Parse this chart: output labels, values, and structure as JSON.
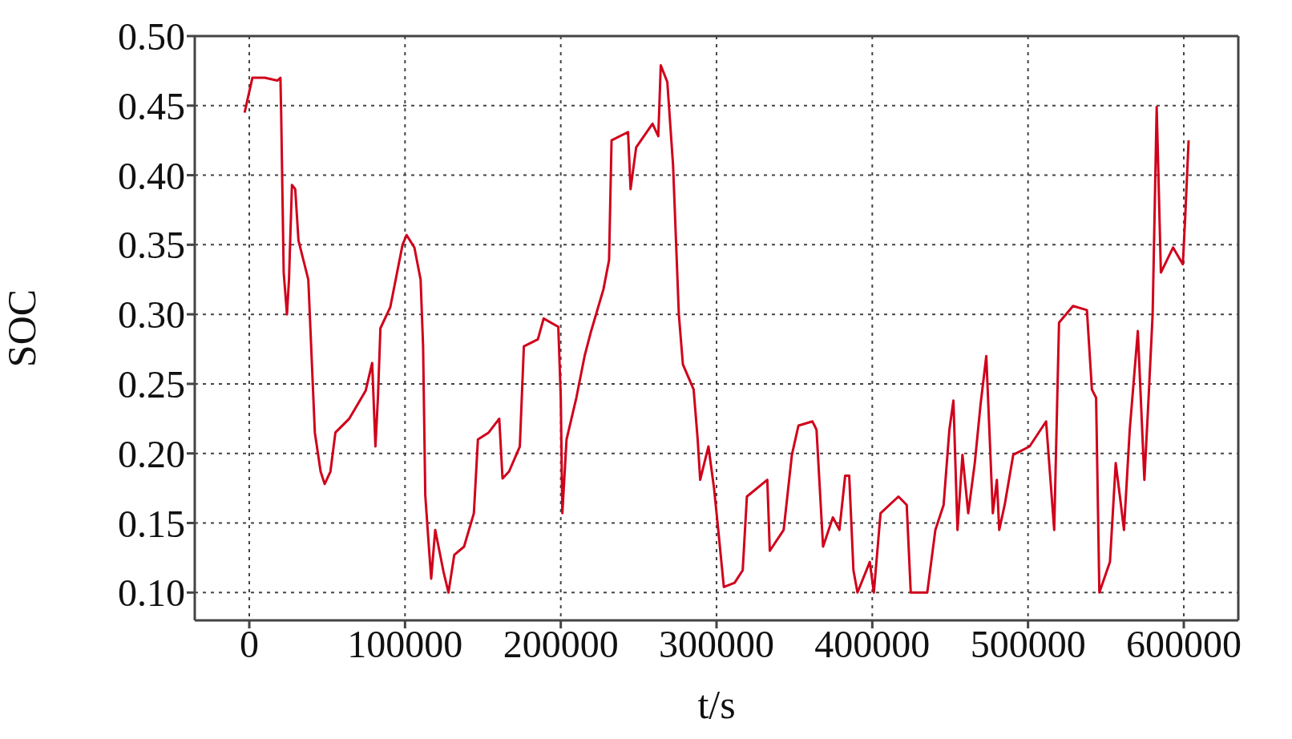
{
  "chart_data": {
    "type": "line",
    "xlabel": "t/s",
    "ylabel": "SOC",
    "x": [
      -3000,
      0,
      2000,
      10000,
      18000,
      20000,
      20500,
      22100,
      24200,
      25500,
      27400,
      29500,
      31600,
      37900,
      40000,
      42100,
      45800,
      48400,
      52100,
      55300,
      64200,
      74700,
      78900,
      81000,
      82600,
      84200,
      90500,
      98400,
      101000,
      106000,
      110000,
      111600,
      113000,
      115300,
      116800,
      119400,
      124700,
      127900,
      131600,
      137900,
      144200,
      146800,
      153700,
      160500,
      162600,
      166800,
      173700,
      176300,
      185300,
      189000,
      198400,
      200000,
      201000,
      203700,
      210000,
      215300,
      219500,
      227400,
      231000,
      232600,
      243200,
      244800,
      248400,
      258900,
      262600,
      264200,
      268400,
      272100,
      275800,
      278400,
      285300,
      287900,
      289500,
      294800,
      298400,
      301100,
      304700,
      311600,
      316800,
      319500,
      332600,
      334200,
      343100,
      348400,
      352600,
      361600,
      364200,
      368400,
      374700,
      378900,
      382600,
      385200,
      387900,
      390500,
      398400,
      401000,
      405300,
      416800,
      422100,
      424700,
      435300,
      440500,
      445800,
      449500,
      452100,
      454700,
      457900,
      461600,
      465800,
      469500,
      473200,
      477400,
      480000,
      481500,
      485000,
      490500,
      501000,
      511600,
      516800,
      519900,
      528900,
      537800,
      541000,
      543700,
      545800,
      552600,
      556300,
      559000,
      561600,
      565300,
      570500,
      574700,
      577400,
      580000,
      582600,
      585300,
      593100,
      599400,
      601000,
      603100
    ],
    "series": [
      {
        "color": "#d0021b",
        "values": [
          0.445,
          0.46,
          0.47,
          0.47,
          0.468,
          0.47,
          0.443,
          0.33,
          0.3,
          0.325,
          0.393,
          0.39,
          0.353,
          0.325,
          0.27,
          0.215,
          0.187,
          0.178,
          0.187,
          0.215,
          0.225,
          0.245,
          0.265,
          0.205,
          0.24,
          0.29,
          0.305,
          0.35,
          0.357,
          0.348,
          0.325,
          0.277,
          0.17,
          0.133,
          0.11,
          0.145,
          0.115,
          0.1,
          0.127,
          0.133,
          0.157,
          0.21,
          0.215,
          0.225,
          0.182,
          0.187,
          0.205,
          0.277,
          0.282,
          0.297,
          0.291,
          0.24,
          0.157,
          0.21,
          0.24,
          0.27,
          0.288,
          0.318,
          0.339,
          0.425,
          0.431,
          0.39,
          0.42,
          0.437,
          0.428,
          0.479,
          0.467,
          0.407,
          0.3,
          0.264,
          0.246,
          0.21,
          0.181,
          0.205,
          0.175,
          0.145,
          0.104,
          0.107,
          0.116,
          0.169,
          0.181,
          0.13,
          0.145,
          0.199,
          0.22,
          0.223,
          0.217,
          0.133,
          0.154,
          0.145,
          0.184,
          0.184,
          0.116,
          0.1,
          0.122,
          0.1,
          0.157,
          0.169,
          0.163,
          0.1,
          0.1,
          0.145,
          0.163,
          0.217,
          0.238,
          0.145,
          0.199,
          0.157,
          0.193,
          0.235,
          0.27,
          0.157,
          0.181,
          0.145,
          0.163,
          0.199,
          0.205,
          0.223,
          0.145,
          0.294,
          0.306,
          0.303,
          0.246,
          0.24,
          0.1,
          0.122,
          0.193,
          0.169,
          0.145,
          0.217,
          0.288,
          0.181,
          0.24,
          0.3,
          0.449,
          0.33,
          0.348,
          0.336,
          0.372,
          0.425
        ]
      }
    ],
    "xlim": [
      -35000,
      635000
    ],
    "ylim": [
      0.08,
      0.5
    ],
    "xticks": [
      0,
      100000,
      200000,
      300000,
      400000,
      500000,
      600000
    ],
    "yticks": [
      {
        "value": 0.1,
        "label": "0.10"
      },
      {
        "value": 0.15,
        "label": "0.15"
      },
      {
        "value": 0.2,
        "label": "0.20"
      },
      {
        "value": 0.25,
        "label": "0.25"
      },
      {
        "value": 0.3,
        "label": "0.30"
      },
      {
        "value": 0.35,
        "label": "0.35"
      },
      {
        "value": 0.4,
        "label": "0.40"
      },
      {
        "value": 0.45,
        "label": "0.45"
      },
      {
        "value": 0.5,
        "label": "0.50"
      }
    ],
    "grid": true,
    "line_style": "solid",
    "marker": "none",
    "legend": false
  }
}
